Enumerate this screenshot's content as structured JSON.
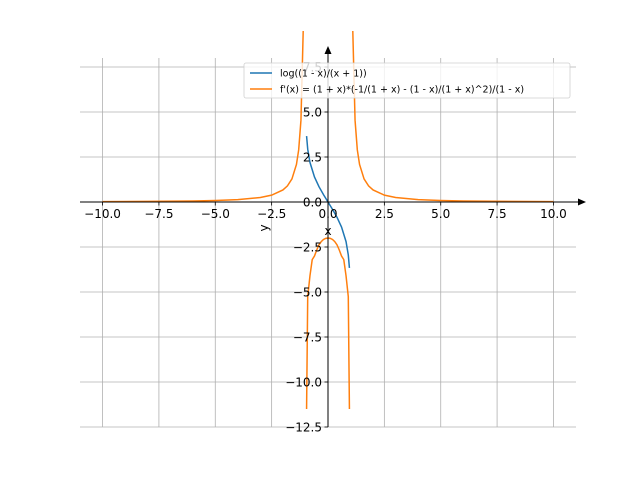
{
  "chart_data": {
    "type": "line",
    "xlabel": "x",
    "ylabel": "y",
    "xlim": [
      -11,
      11
    ],
    "ylim": [
      -12.5,
      8.0
    ],
    "xticks": [
      -10,
      -7.5,
      -5,
      -2.5,
      0,
      2.5,
      5,
      7.5,
      10
    ],
    "xtick_labels": [
      "−10.0",
      "−7.5",
      "−5.0",
      "−2.5",
      "0.0",
      "2.5",
      "5.0",
      "7.5",
      "10.0"
    ],
    "yticks": [
      -12.5,
      -10,
      -7.5,
      -5,
      -2.5,
      0,
      2.5,
      5,
      7.5
    ],
    "ytick_labels": [
      "−12.5",
      "−10.0",
      "−7.5",
      "−5.0",
      "−2.5",
      "0.0",
      "2.5",
      "5.0",
      "7.5"
    ],
    "grid": true,
    "legend_position": "top-right",
    "series": [
      {
        "name": "log((1 - x)/(x + 1))",
        "color": "#1f77b4",
        "x": [
          -0.95,
          -0.9,
          -0.8,
          -0.6,
          -0.4,
          -0.2,
          0,
          0.2,
          0.4,
          0.6,
          0.8,
          0.9,
          0.95
        ],
        "y": [
          3.66,
          2.94,
          2.2,
          1.39,
          0.85,
          0.41,
          0,
          -0.41,
          -0.85,
          -1.39,
          -2.2,
          -2.94,
          -3.66
        ]
      },
      {
        "name": "f'(x) = (1 + x)*(-1/(1 + x) - (1 - x)/(1 + x)^2)/(1 - x)",
        "color": "#ff7f0e",
        "segments": [
          {
            "x": [
              -10,
              -8,
              -6,
              -5,
              -4,
              -3,
              -2.5,
              -2,
              -1.8,
              -1.6,
              -1.4,
              -1.3,
              -1.2,
              -1.1
            ],
            "y": [
              0.02,
              0.032,
              0.057,
              0.083,
              0.133,
              0.25,
              0.381,
              0.667,
              0.893,
              1.282,
              2.083,
              2.899,
              4.545,
              9.5
            ]
          },
          {
            "x": [
              -0.95,
              -0.9,
              -0.8,
              -0.7,
              -0.6,
              -0.5,
              -0.4,
              -0.3,
              -0.2,
              -0.1,
              0,
              0.1,
              0.2,
              0.3,
              0.4,
              0.5,
              0.6,
              0.7,
              0.8,
              0.9,
              0.95
            ],
            "y": [
              -11.5,
              -5.26,
              -4.1,
              -3.2,
              -3.0,
              -2.667,
              -2.381,
              -2.198,
              -2.083,
              -2.02,
              -2.0,
              -2.02,
              -2.083,
              -2.198,
              -2.381,
              -2.667,
              -3.0,
              -3.2,
              -4.1,
              -5.26,
              -11.5
            ]
          },
          {
            "x": [
              1.1,
              1.2,
              1.3,
              1.4,
              1.6,
              1.8,
              2,
              2.5,
              3,
              4,
              5,
              6,
              8,
              10
            ],
            "y": [
              9.5,
              4.545,
              2.899,
              2.083,
              1.282,
              0.893,
              0.667,
              0.381,
              0.25,
              0.133,
              0.083,
              0.057,
              0.032,
              0.02
            ]
          }
        ]
      }
    ]
  }
}
